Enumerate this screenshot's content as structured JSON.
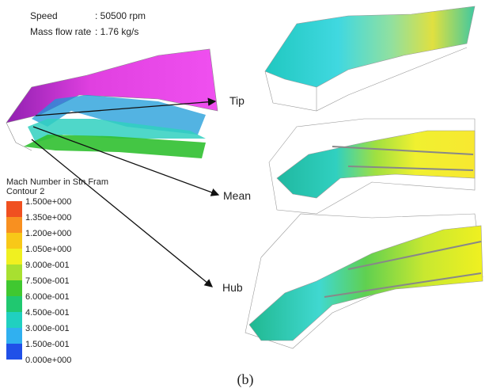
{
  "info": {
    "speed_label": "Speed",
    "speed_value": ": 50500 rpm",
    "flow_label": "Mass flow rate",
    "flow_value": ": 1.76 kg/s"
  },
  "legend": {
    "title": "Mach Number in Stn Fram",
    "subtitle": "Contour 2",
    "labels": [
      "1.500e+000",
      "1.350e+000",
      "1.200e+000",
      "1.050e+000",
      "9.000e-001",
      "7.500e-001",
      "6.000e-001",
      "4.500e-001",
      "3.000e-001",
      "1.500e-001",
      "0.000e+000"
    ]
  },
  "callouts": [
    "Tip",
    "Mean",
    "Hub"
  ],
  "caption": "(b)"
}
